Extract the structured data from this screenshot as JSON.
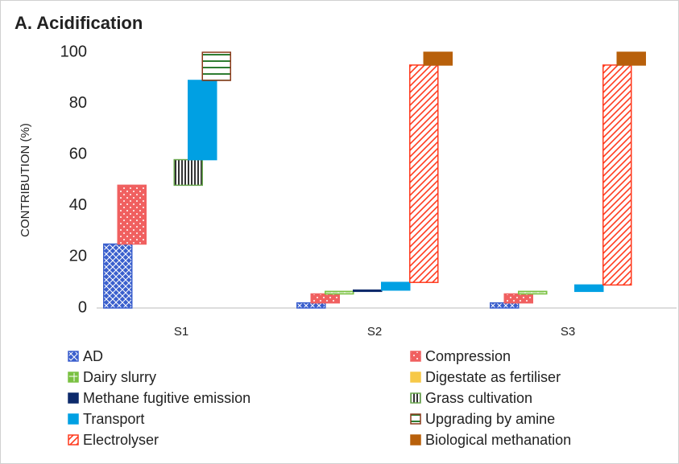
{
  "chart_data": {
    "type": "floating_bar",
    "title": "A. Acidification",
    "y_label": "CONTRIBUTION (%)",
    "categories": [
      "S1",
      "S2",
      "S3"
    ],
    "ylim": [
      0,
      100
    ],
    "yticks": [
      0,
      20,
      40,
      60,
      80,
      100
    ],
    "grid": false,
    "legend_position": "bottom",
    "series": [
      {
        "name": "AD",
        "color": "#3a5fcd",
        "pattern": "checker",
        "values": [
          25,
          2,
          2
        ]
      },
      {
        "name": "Compression",
        "color": "#f06060",
        "pattern": "dots",
        "values": [
          23,
          3.5,
          3.5
        ]
      },
      {
        "name": "Dairy slurry",
        "color": "#7ac142",
        "pattern": "grid",
        "values": [
          0,
          1,
          1
        ]
      },
      {
        "name": "Digestate as fertiliser",
        "color": "#f7c948",
        "pattern": "solid-light",
        "values": [
          0,
          0,
          0
        ]
      },
      {
        "name": "Methane fugitive emission",
        "color": "#0d2a6b",
        "pattern": "solid",
        "values": [
          0,
          0.5,
          0
        ]
      },
      {
        "name": "Grass cultivation",
        "color": "#6aa84f",
        "pattern": "vlines",
        "values": [
          10,
          0,
          0
        ]
      },
      {
        "name": "Transport",
        "color": "#00a0e3",
        "pattern": "solid",
        "values": [
          31,
          3,
          2.5
        ]
      },
      {
        "name": "Upgrading by amine",
        "color": "#8b3a1a",
        "pattern": "hlines",
        "values": [
          11,
          0,
          0
        ]
      },
      {
        "name": "Electrolyser",
        "color": "#ff3b1f",
        "pattern": "diag",
        "values": [
          0,
          85,
          86
        ]
      },
      {
        "name": "Biological methanation",
        "color": "#b8600b",
        "pattern": "solid",
        "values": [
          0,
          5,
          5
        ]
      }
    ]
  }
}
